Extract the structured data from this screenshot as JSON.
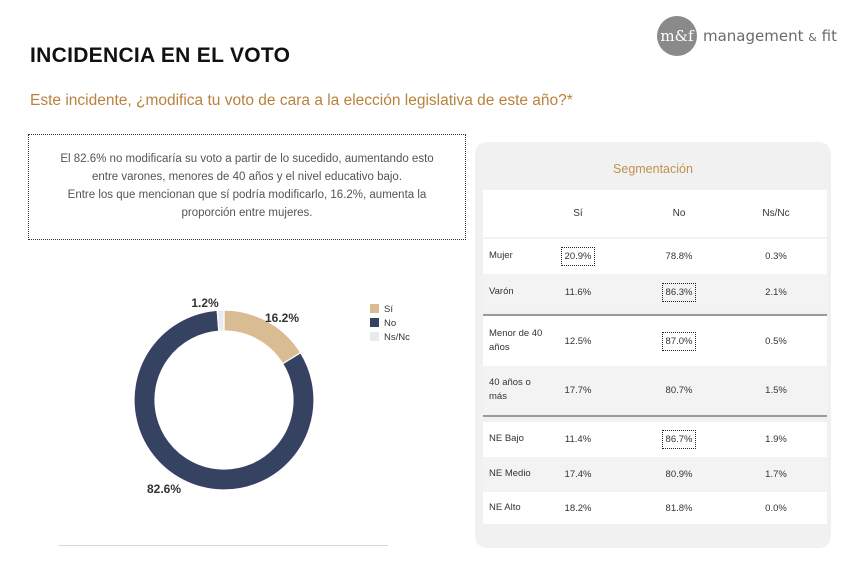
{
  "brand": {
    "mark": "m&f",
    "name": "management",
    "amp": "&",
    "suffix": "fit"
  },
  "title": "INCIDENCIA EN EL VOTO",
  "subtitle": "Este incidente, ¿modifica tu voto de cara a la elección legislativa de este año?*",
  "note": {
    "line1": "El 82.6% no modificaría su voto a partir de lo sucedido, aumentando esto",
    "line2": "entre varones, menores de 40 años y el nivel educativo bajo.",
    "line3": "Entre los que mencionan que sí podría modificarlo, 16.2%, aumenta la",
    "line4": "proporción entre mujeres."
  },
  "colors": {
    "si": "#d9bc92",
    "no": "#364262",
    "nsnc": "#e9eaee",
    "accent": "#b8823d"
  },
  "chart_data": [
    {
      "type": "pie",
      "variant": "donut",
      "categories": [
        "Sí",
        "No",
        "Ns/Nc"
      ],
      "values": [
        16.2,
        82.6,
        1.2
      ],
      "labels": [
        "16.2%",
        "82.6%",
        "1.2%"
      ],
      "legend_position": "right"
    },
    {
      "type": "table",
      "title": "Segmentación",
      "columns": [
        "Sí",
        "No",
        "Ns/Nc"
      ],
      "rows": [
        {
          "label": "Mujer",
          "values": [
            "20.9%",
            "78.8%",
            "0.3%"
          ],
          "highlight": 0
        },
        {
          "label": "Varón",
          "values": [
            "11.6%",
            "86.3%",
            "2.1%"
          ],
          "highlight": 1
        },
        {
          "label": "Menor de 40 años",
          "values": [
            "12.5%",
            "87.0%",
            "0.5%"
          ],
          "highlight": 1
        },
        {
          "label": "40 años o más",
          "values": [
            "17.7%",
            "80.7%",
            "1.5%"
          ],
          "highlight": -1
        },
        {
          "label": "NE Bajo",
          "values": [
            "11.4%",
            "86.7%",
            "1.9%"
          ],
          "highlight": 1
        },
        {
          "label": "NE Medio",
          "values": [
            "17.4%",
            "80.9%",
            "1.7%"
          ],
          "highlight": -1
        },
        {
          "label": "NE Alto",
          "values": [
            "18.2%",
            "81.8%",
            "0.0%"
          ],
          "highlight": -1
        }
      ]
    }
  ]
}
